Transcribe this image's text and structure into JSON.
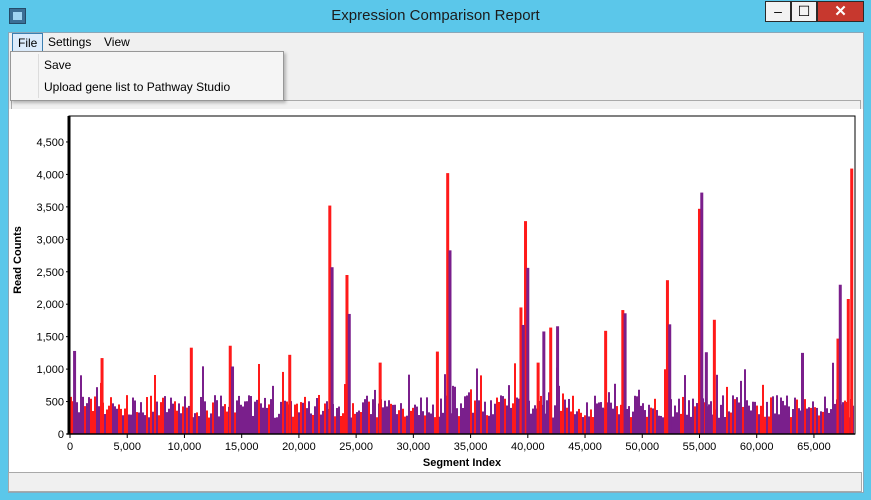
{
  "window": {
    "title": "Expression Comparison Report",
    "controls": {
      "minimize": "–",
      "maximize": "☐",
      "close": "✕"
    }
  },
  "menubar": {
    "items": [
      {
        "label": "File"
      },
      {
        "label": "Settings"
      },
      {
        "label": "View"
      }
    ]
  },
  "file_menu": {
    "items": [
      {
        "label": "Save"
      },
      {
        "label": "Upload gene list to Pathway Studio"
      }
    ]
  },
  "colors": {
    "series_a": "#ff1a1a",
    "series_b": "#7a1f8c",
    "titlebar": "#5bc7ea"
  },
  "chart_data": {
    "type": "bar",
    "xlabel": "Segment Index",
    "ylabel": "Read Counts",
    "xlim": [
      0,
      68500
    ],
    "ylim": [
      0,
      4900
    ],
    "xticks": [
      0,
      5000,
      10000,
      15000,
      20000,
      25000,
      30000,
      35000,
      40000,
      45000,
      50000,
      55000,
      60000,
      65000
    ],
    "yticks": [
      0,
      500,
      1000,
      1500,
      2000,
      2500,
      3000,
      3500,
      4000,
      4500
    ],
    "grid": false,
    "series": [
      {
        "color": "#ff1a1a",
        "peaks": [
          {
            "x": 22700,
            "y": 3520
          },
          {
            "x": 24200,
            "y": 2450
          },
          {
            "x": 33000,
            "y": 4020
          },
          {
            "x": 39800,
            "y": 3280
          },
          {
            "x": 39400,
            "y": 1950
          },
          {
            "x": 52200,
            "y": 2370
          },
          {
            "x": 55000,
            "y": 3470
          },
          {
            "x": 68300,
            "y": 4090
          },
          {
            "x": 68000,
            "y": 2080
          },
          {
            "x": 14000,
            "y": 1360
          },
          {
            "x": 10600,
            "y": 1330
          },
          {
            "x": 48300,
            "y": 1910
          },
          {
            "x": 56300,
            "y": 1760
          },
          {
            "x": 46800,
            "y": 1590
          },
          {
            "x": 32100,
            "y": 1270
          },
          {
            "x": 19200,
            "y": 1220
          },
          {
            "x": 42000,
            "y": 1640
          },
          {
            "x": 67100,
            "y": 1470
          },
          {
            "x": 2800,
            "y": 1170
          },
          {
            "x": 40900,
            "y": 1100
          },
          {
            "x": 27100,
            "y": 1100
          }
        ]
      },
      {
        "color": "#7a1f8c",
        "peaks": [
          {
            "x": 22900,
            "y": 2570
          },
          {
            "x": 24400,
            "y": 1850
          },
          {
            "x": 33200,
            "y": 2830
          },
          {
            "x": 40000,
            "y": 2560
          },
          {
            "x": 39600,
            "y": 1680
          },
          {
            "x": 52400,
            "y": 1690
          },
          {
            "x": 55200,
            "y": 3720
          },
          {
            "x": 67300,
            "y": 2300
          },
          {
            "x": 48500,
            "y": 1860
          },
          {
            "x": 14200,
            "y": 1040
          },
          {
            "x": 400,
            "y": 1280
          },
          {
            "x": 41400,
            "y": 1580
          },
          {
            "x": 42600,
            "y": 1660
          },
          {
            "x": 64000,
            "y": 1250
          },
          {
            "x": 55600,
            "y": 1260
          }
        ]
      }
    ]
  }
}
